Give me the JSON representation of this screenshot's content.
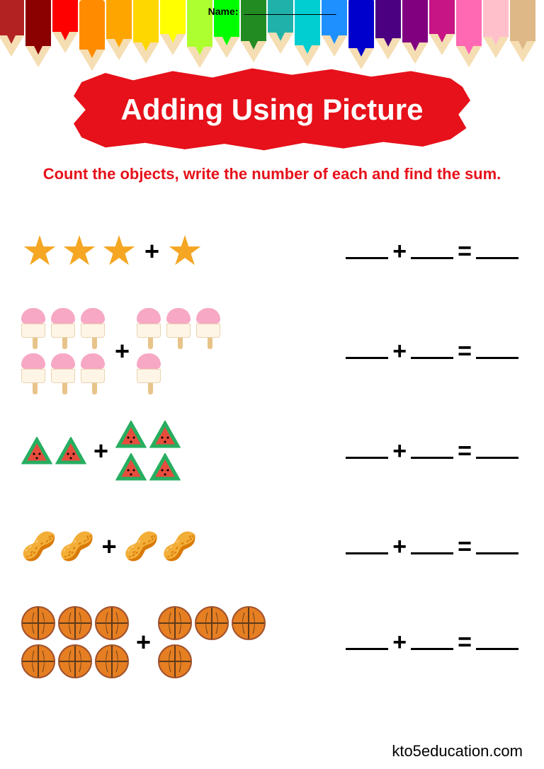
{
  "name_label": "Name:",
  "title": "Adding Using Picture",
  "instruction": "Count the objects, write the number of each and find the sum.",
  "plus_symbol": "+",
  "equals_symbol": "=",
  "footer": "kto5education.com",
  "pencil_colors": [
    "#b22222",
    "#8b0000",
    "#ff0000",
    "#ff8c00",
    "#ffa500",
    "#ffd700",
    "#ffff00",
    "#adff2f",
    "#00ff00",
    "#228b22",
    "#20b2aa",
    "#00ced1",
    "#1e90ff",
    "#0000cd",
    "#4b0082",
    "#800080",
    "#c71585",
    "#ff69b4",
    "#ffc0cb",
    "#deb887"
  ],
  "problems": [
    {
      "type": "star",
      "left_count": 3,
      "right_count": 1,
      "color": "#f5a623"
    },
    {
      "type": "popsicle",
      "left_count": 6,
      "right_count": 4,
      "color_top": "#f7a8c4",
      "color_body": "#fff5e6"
    },
    {
      "type": "watermelon",
      "left_count": 2,
      "right_count": 4,
      "color_flesh": "#e74c3c",
      "color_rind": "#27ae60"
    },
    {
      "type": "peanut",
      "left_count": 2,
      "right_count": 2,
      "color": "#d2a679"
    },
    {
      "type": "basketball",
      "left_count": 6,
      "right_count": 4,
      "color": "#e67e22"
    }
  ],
  "banner_color": "#e6111a",
  "instruction_color": "#e6111a"
}
